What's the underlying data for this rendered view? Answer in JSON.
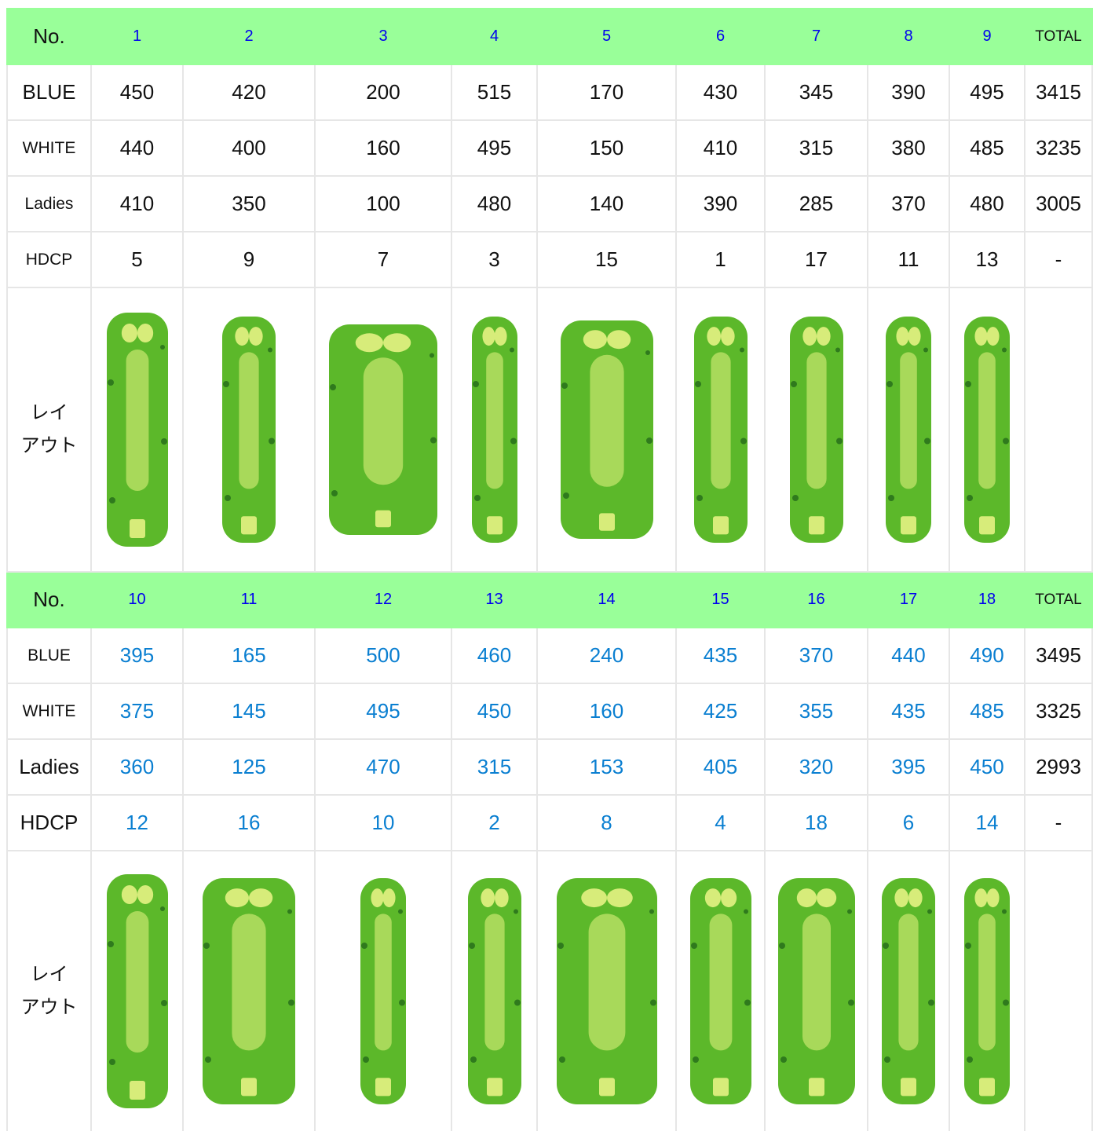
{
  "sections": [
    {
      "header": {
        "label": "No.",
        "holes": [
          "1",
          "2",
          "3",
          "4",
          "5",
          "6",
          "7",
          "8",
          "9"
        ],
        "total": "TOTAL"
      },
      "rows": [
        {
          "label": "BLUE",
          "values": [
            "450",
            "420",
            "200",
            "515",
            "170",
            "430",
            "345",
            "390",
            "495"
          ],
          "total": "3415"
        },
        {
          "label": "WHITE",
          "values": [
            "440",
            "400",
            "160",
            "495",
            "150",
            "410",
            "315",
            "380",
            "485"
          ],
          "total": "3235"
        },
        {
          "label": "Ladies",
          "values": [
            "410",
            "350",
            "100",
            "480",
            "140",
            "390",
            "285",
            "370",
            "480"
          ],
          "total": "3005"
        },
        {
          "label": "HDCP",
          "values": [
            "5",
            "9",
            "7",
            "3",
            "15",
            "1",
            "17",
            "11",
            "13"
          ],
          "total": "-"
        }
      ],
      "layout": {
        "label_line1": "レイ",
        "label_line2": "アウト"
      }
    },
    {
      "header": {
        "label": "No.",
        "holes": [
          "10",
          "11",
          "12",
          "13",
          "14",
          "15",
          "16",
          "17",
          "18"
        ],
        "total": "TOTAL"
      },
      "rows": [
        {
          "label": "BLUE",
          "values": [
            "395",
            "165",
            "500",
            "460",
            "240",
            "435",
            "370",
            "440",
            "490"
          ],
          "total": "3495"
        },
        {
          "label": "WHITE",
          "values": [
            "375",
            "145",
            "495",
            "450",
            "160",
            "425",
            "355",
            "435",
            "485"
          ],
          "total": "3325"
        },
        {
          "label": "Ladies",
          "values": [
            "360",
            "125",
            "470",
            "315",
            "153",
            "405",
            "320",
            "395",
            "450"
          ],
          "total": "2993"
        },
        {
          "label": "HDCP",
          "values": [
            "12",
            "16",
            "10",
            "2",
            "8",
            "4",
            "18",
            "6",
            "14"
          ],
          "total": "-"
        }
      ],
      "layout": {
        "label_line1": "レイ",
        "label_line2": "アウト"
      }
    }
  ],
  "colors": {
    "header_bg": "#99ff99",
    "hole_link": "#0000ee",
    "back_nine_values": "#0a7fd1",
    "fairway": "#5cb82a",
    "fairway_inner": "#a8d95a",
    "green": "#d7ec7a",
    "water": "#3ba7d8",
    "bunker": "#ece4d0"
  },
  "icons": [
    "hole-layout-map-icon"
  ]
}
